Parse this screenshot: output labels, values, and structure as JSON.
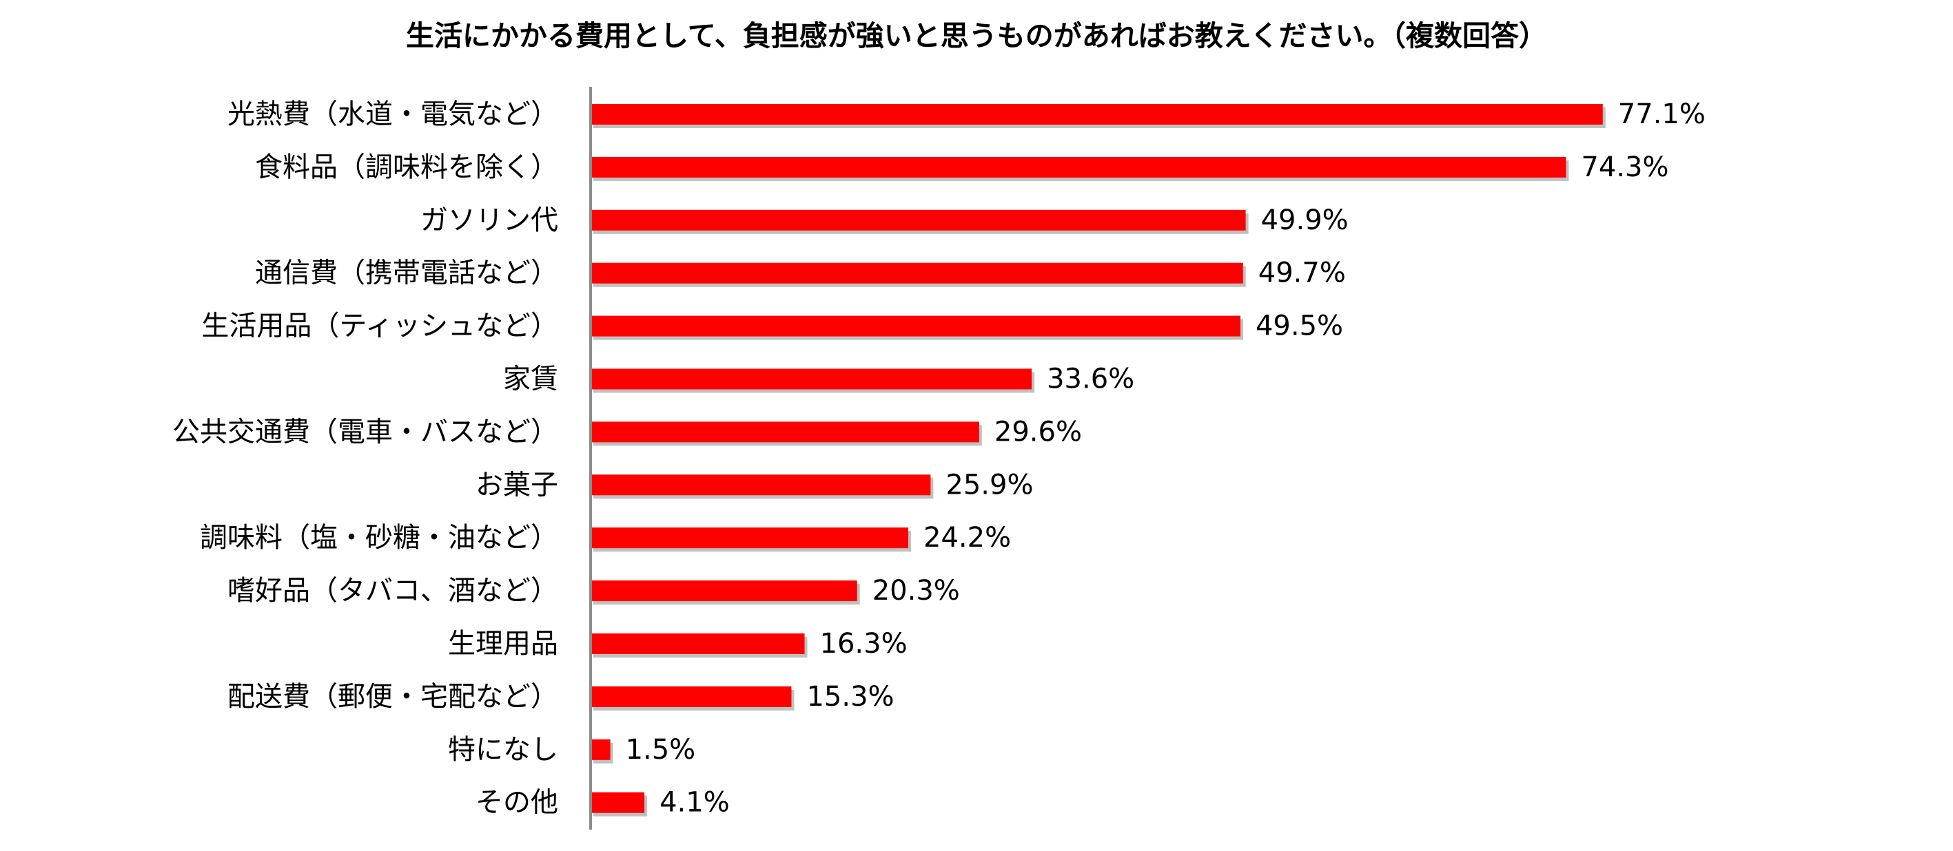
{
  "chart_data": {
    "type": "bar",
    "orientation": "horizontal",
    "title": "生活にかかる費用として、負担感が強いと思うものがあればお教えください。（複数回答）",
    "categories": [
      "光熱費（水道・電気など）",
      "食料品（調味料を除く）",
      "ガソリン代",
      "通信費（携帯電話など）",
      "生活用品（ティッシュなど）",
      "家賃",
      "公共交通費（電車・バスなど）",
      "お菓子",
      "調味料（塩・砂糖・油など）",
      "嗜好品（タバコ、酒など）",
      "生理用品",
      "配送費（郵便・宅配など）",
      "特になし",
      "その他"
    ],
    "values": [
      77.1,
      74.3,
      49.9,
      49.7,
      49.5,
      33.6,
      29.6,
      25.9,
      24.2,
      20.3,
      16.3,
      15.3,
      1.5,
      4.1
    ],
    "value_labels": [
      "77.1%",
      "74.3%",
      "49.9%",
      "49.7%",
      "49.5%",
      "33.6%",
      "29.6%",
      "25.9%",
      "24.2%",
      "20.3%",
      "16.3%",
      "15.3%",
      "1.5%",
      "4.1%"
    ],
    "unit": "%",
    "bar_color": "#ff0000",
    "bar_shadow_color": "#8c8c8c",
    "axis_color": "#8c8c8c",
    "grid": false,
    "legend": false
  }
}
